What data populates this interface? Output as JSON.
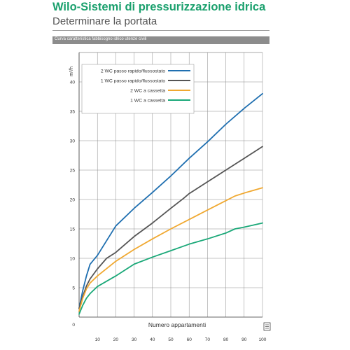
{
  "header": {
    "title": "Wilo-Sistemi di pressurizzazione idrica",
    "subtitle": "Determinare la portata",
    "caption": "Curva caratteristica fabbisogno idrico utenze civili"
  },
  "chart_data": {
    "type": "line",
    "title": "",
    "xlabel": "Numero appartamenti",
    "ylabel": "m³/h",
    "xlim": [
      0,
      100
    ],
    "ylim": [
      0,
      45
    ],
    "x_ticks": [
      10,
      20,
      30,
      40,
      50,
      60,
      70,
      80,
      90,
      100
    ],
    "x_tick_labels": [
      "10",
      "20",
      "30",
      "40",
      "50",
      "60",
      "70",
      "80",
      "90",
      "100"
    ],
    "y_ticks": [
      0,
      5,
      10,
      15,
      20,
      25,
      30,
      35,
      40
    ],
    "y_tick_labels": [
      "0",
      "5",
      "10",
      "15",
      "20",
      "25",
      "30",
      "35",
      "40"
    ],
    "grid": true,
    "legend_position": "top-left",
    "series": [
      {
        "name": "2 WC passo rapido/flussostato",
        "color": "#1f6fb0",
        "x": [
          0,
          2,
          4,
          6,
          10,
          20,
          30,
          40,
          50,
          60,
          70,
          80,
          90,
          100
        ],
        "y": [
          1.5,
          4.5,
          7,
          9,
          10.5,
          15.5,
          18.5,
          21.2,
          24,
          27,
          29.8,
          32.8,
          35.5,
          38
        ]
      },
      {
        "name": "1 WC passo rapido/flussostato",
        "color": "#555555",
        "x": [
          0,
          2,
          4,
          6,
          10,
          15,
          20,
          30,
          40,
          50,
          57,
          60,
          70,
          80,
          90,
          100
        ],
        "y": [
          1.5,
          3.5,
          5.3,
          6.5,
          8.2,
          10,
          11,
          13.7,
          16,
          18.5,
          20.2,
          21,
          23,
          25,
          27,
          29
        ]
      },
      {
        "name": "2 WC a cassetta",
        "color": "#f0a830",
        "x": [
          0,
          2,
          4,
          6,
          10,
          20,
          30,
          40,
          50,
          60,
          70,
          80,
          85,
          90,
          100
        ],
        "y": [
          1,
          3.2,
          4.8,
          5.8,
          7,
          9.5,
          11.5,
          13.3,
          15,
          16.6,
          18.2,
          19.8,
          20.6,
          21.1,
          22
        ]
      },
      {
        "name": "1 WC a cassetta",
        "color": "#1aa878",
        "x": [
          0,
          2,
          4,
          6,
          10,
          20,
          30,
          40,
          50,
          60,
          70,
          80,
          85,
          90,
          100
        ],
        "y": [
          0.5,
          2,
          3.2,
          4,
          5.2,
          7,
          9,
          10.2,
          11.3,
          12.4,
          13.3,
          14.3,
          15,
          15.3,
          16
        ]
      }
    ]
  }
}
